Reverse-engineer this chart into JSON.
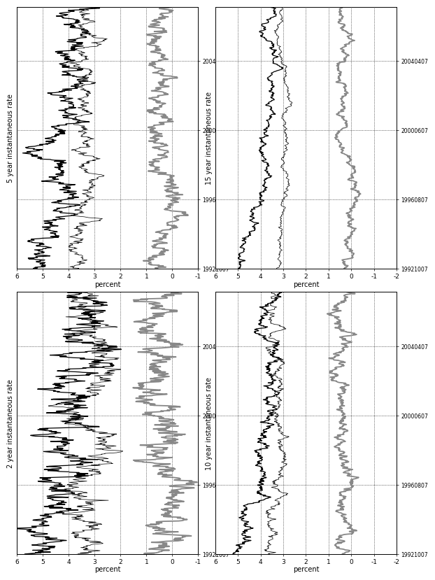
{
  "panels": [
    {
      "title": "2 year instantaneous rate",
      "ylim": [
        -1,
        6
      ],
      "yticks": [
        -1,
        0,
        1,
        2,
        3,
        4,
        5,
        6
      ]
    },
    {
      "title": "5 year instantaneous rate",
      "ylim": [
        -1,
        6
      ],
      "yticks": [
        -1,
        0,
        1,
        2,
        3,
        4,
        5,
        6
      ]
    },
    {
      "title": "10 year instantaneous rate",
      "ylim": [
        -2,
        6
      ],
      "yticks": [
        -2,
        -1,
        0,
        1,
        2,
        3,
        4,
        5,
        6
      ]
    },
    {
      "title": "15 year instantaneous rate",
      "ylim": [
        -2,
        6
      ],
      "yticks": [
        -2,
        -1,
        0,
        1,
        2,
        3,
        4,
        5,
        6
      ]
    }
  ],
  "date_start": 1992.75,
  "date_end": 2007.25,
  "xtick_labels": [
    "19921007",
    "19960807",
    "20000607",
    "20040407"
  ],
  "xtick_positions": [
    1992.75,
    1996.58,
    2000.42,
    2004.25
  ],
  "ylabel": "percent",
  "black_color": "#000000",
  "gray_color": "#888888",
  "bg_color": "#ffffff",
  "grid_color": "#000000",
  "n_points": 700
}
